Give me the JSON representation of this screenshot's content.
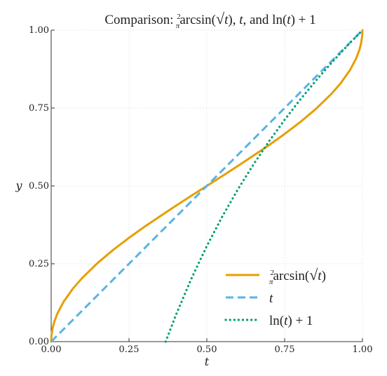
{
  "chart_data": {
    "type": "line",
    "title": {
      "prefix": "Comparison: ",
      "frac_num": "2",
      "frac_den": "π",
      "fn": "arcsin(",
      "radical": "√",
      "radicand": "t",
      "fn_close": "), ",
      "t": "t",
      "sep": ", and ",
      "ln": "ln(",
      "ln_arg": "t",
      "ln_close": ") + 1"
    },
    "xlabel": "t",
    "ylabel": "y",
    "xlim": [
      0,
      1
    ],
    "ylim": [
      0,
      1
    ],
    "xticks": [
      "0.00",
      "0.25",
      "0.50",
      "0.75",
      "1.00"
    ],
    "yticks": [
      "0.00",
      "0.25",
      "0.50",
      "0.75",
      "1.00"
    ],
    "grid": true,
    "legend_position": "bottom-right",
    "series": [
      {
        "name": "(2/π) arcsin(√t)",
        "color": "#E69F00",
        "style": "solid",
        "x": [
          0.0,
          0.001,
          0.005,
          0.01,
          0.02,
          0.04,
          0.07,
          0.1,
          0.15,
          0.2,
          0.25,
          0.3,
          0.35,
          0.4,
          0.45,
          0.5,
          0.55,
          0.6,
          0.65,
          0.7,
          0.75,
          0.8,
          0.85,
          0.9,
          0.93,
          0.96,
          0.98,
          0.99,
          0.995,
          0.999,
          1.0
        ],
        "y": [
          0.0,
          0.0201,
          0.045,
          0.0638,
          0.0903,
          0.1282,
          0.1705,
          0.2048,
          0.2532,
          0.2952,
          0.3333,
          0.369,
          0.4027,
          0.4359,
          0.4681,
          0.5,
          0.5319,
          0.5641,
          0.5973,
          0.631,
          0.6667,
          0.7048,
          0.7468,
          0.7952,
          0.8295,
          0.8718,
          0.9097,
          0.9362,
          0.955,
          0.9799,
          1.0
        ]
      },
      {
        "name": "t",
        "color": "#56B4E9",
        "style": "dashed",
        "x": [
          0,
          1
        ],
        "y": [
          0,
          1
        ]
      },
      {
        "name": "ln(t) + 1",
        "color": "#009E73",
        "style": "dotted",
        "x": [
          0.3679,
          0.4,
          0.45,
          0.5,
          0.55,
          0.6,
          0.65,
          0.7,
          0.75,
          0.8,
          0.85,
          0.9,
          0.95,
          1.0
        ],
        "y": [
          0.0,
          0.0837,
          0.2015,
          0.3069,
          0.4022,
          0.4892,
          0.5692,
          0.6433,
          0.7123,
          0.7769,
          0.8375,
          0.8946,
          0.9487,
          1.0
        ]
      }
    ],
    "legend": {
      "frac_num": "2",
      "frac_den": "π",
      "fn": "arcsin(",
      "radical": "√",
      "radicand": "t",
      "fn_close": ")",
      "t": "t",
      "ln": "ln(",
      "ln_arg": "t",
      "ln_close": ") + 1"
    }
  }
}
